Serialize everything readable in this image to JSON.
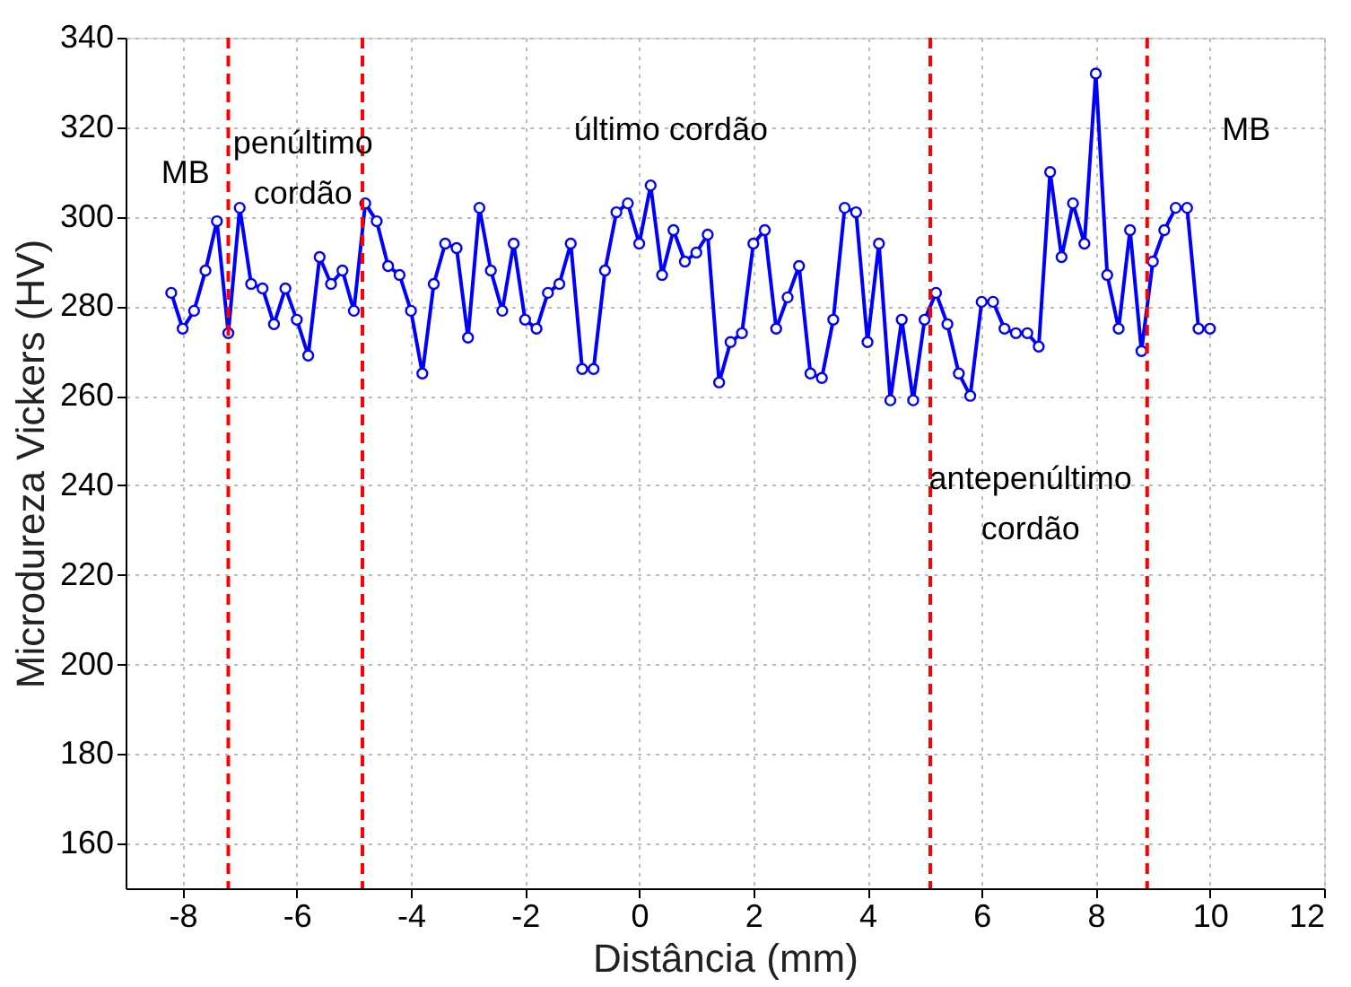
{
  "chart_data": {
    "type": "line",
    "xlabel": "Distância (mm)",
    "ylabel": "Microdureza Vickers (HV)",
    "x": [
      -8.2,
      -8.0,
      -7.8,
      -7.6,
      -7.4,
      -7.2,
      -7.0,
      -6.8,
      -6.6,
      -6.4,
      -6.2,
      -6.0,
      -5.8,
      -5.6,
      -5.4,
      -5.2,
      -5.0,
      -4.8,
      -4.6,
      -4.4,
      -4.2,
      -4.0,
      -3.8,
      -3.6,
      -3.4,
      -3.2,
      -3.0,
      -2.8,
      -2.6,
      -2.4,
      -2.2,
      -2.0,
      -1.8,
      -1.6,
      -1.4,
      -1.2,
      -1.0,
      -0.8,
      -0.6,
      -0.4,
      -0.2,
      0.0,
      0.2,
      0.4,
      0.6,
      0.8,
      1.0,
      1.2,
      1.4,
      1.6,
      1.8,
      2.0,
      2.2,
      2.4,
      2.6,
      2.8,
      3.0,
      3.2,
      3.4,
      3.6,
      3.8,
      4.0,
      4.2,
      4.4,
      4.6,
      4.8,
      5.0,
      5.2,
      5.4,
      5.6,
      5.8,
      6.0,
      6.2,
      6.4,
      6.6,
      6.8,
      7.0,
      7.2,
      7.4,
      7.6,
      7.8,
      8.0,
      8.2,
      8.4,
      8.6,
      8.8,
      9.0,
      9.2,
      9.4,
      9.6,
      9.8,
      10.0
    ],
    "series": [
      {
        "color": "#0000ff",
        "values": [
          283,
          275,
          279,
          288,
          299,
          274,
          302,
          285,
          284,
          276,
          284,
          277,
          269,
          291,
          285,
          288,
          279,
          303,
          299,
          289,
          287,
          279,
          265,
          285,
          294,
          293,
          273,
          302,
          288,
          279,
          294,
          277,
          275,
          283,
          285,
          294,
          266,
          266,
          288,
          301,
          303,
          294,
          307,
          287,
          297,
          290,
          292,
          296,
          263,
          272,
          274,
          294,
          297,
          275,
          282,
          289,
          265,
          264,
          277,
          302,
          301,
          272,
          294,
          259,
          277,
          259,
          277,
          283,
          276,
          265,
          260,
          281,
          281,
          275,
          274,
          274,
          271,
          310,
          291,
          303,
          294,
          332,
          287,
          275,
          297,
          270,
          290,
          297,
          302,
          302,
          275,
          275
        ]
      }
    ],
    "xlim": [
      -9,
      12
    ],
    "ylim": [
      150,
      340
    ],
    "xticks": [
      -8,
      -6,
      -4,
      -2,
      0,
      2,
      4,
      6,
      8,
      10,
      12
    ],
    "yticks": [
      160,
      180,
      200,
      220,
      240,
      260,
      280,
      300,
      320,
      340
    ],
    "grid": true,
    "marker": "circle",
    "line_style": "solid",
    "ref_lines": [
      {
        "axis": "x",
        "value": -7.2,
        "color": "#ff0000",
        "line_style": "dashed"
      },
      {
        "axis": "x",
        "value": -4.85,
        "color": "#ff0000",
        "line_style": "dashed"
      },
      {
        "axis": "x",
        "value": 5.1,
        "color": "#ff0000",
        "line_style": "dashed"
      },
      {
        "axis": "x",
        "value": 8.9,
        "color": "#ff0000",
        "line_style": "dashed"
      }
    ],
    "annotations": [
      "MB",
      "penúltimo\ncordão",
      "último cordão",
      "antepenúltimo\ncordão",
      "MB"
    ]
  }
}
